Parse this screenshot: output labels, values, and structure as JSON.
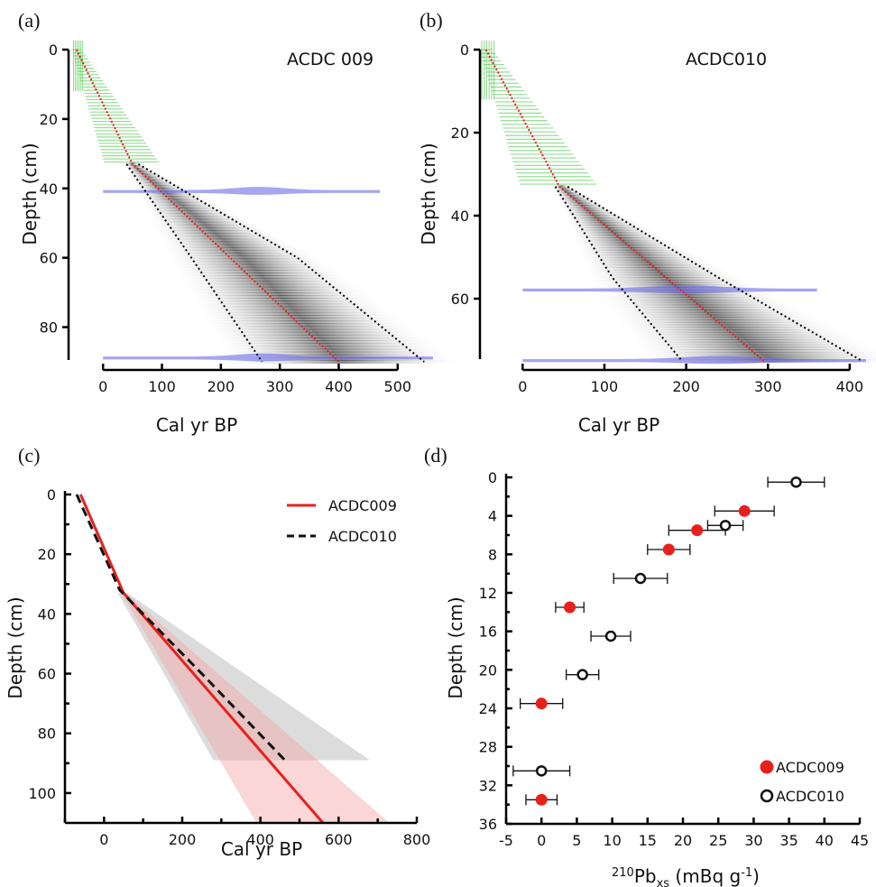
{
  "colors": {
    "ACDC009": "#e8201c",
    "ACDC010": "#111111",
    "green": "#3ec43e",
    "blue": "#6a6ae8",
    "grey": "#9a9a9a",
    "pink": "#f5a3a3"
  },
  "chart_data": [
    {
      "panel": "(a)",
      "type": "area",
      "core_label": "ACDC 009",
      "xlabel": "Cal yr BP",
      "ylabel": "Depth (cm)",
      "xlim": [
        -60,
        560
      ],
      "ylim": [
        0,
        90
      ],
      "xticks": [
        0,
        100,
        200,
        300,
        400,
        500
      ],
      "yticks": [
        0,
        20,
        40,
        60,
        80
      ],
      "green_depth_max": 33,
      "blue_dates": [
        {
          "depth": 41,
          "x0": 0,
          "x1": 470,
          "peak": 265
        },
        {
          "depth": 89,
          "x0": 0,
          "x1": 560,
          "peak": 270
        }
      ],
      "median": {
        "depth": [
          0,
          33,
          90
        ],
        "age": [
          -45,
          50,
          400
        ]
      },
      "lower_95": {
        "depth": [
          0,
          33,
          60,
          90
        ],
        "age": [
          -45,
          40,
          150,
          270
        ]
      },
      "upper_95": {
        "depth": [
          0,
          33,
          60,
          90
        ],
        "age": [
          -45,
          60,
          330,
          545
        ]
      }
    },
    {
      "panel": "(b)",
      "type": "area",
      "core_label": "ACDC010",
      "xlabel": "Cal yr BP",
      "ylabel": "Depth (cm)",
      "xlim": [
        -50,
        420
      ],
      "ylim": [
        0,
        75
      ],
      "xticks": [
        0,
        100,
        200,
        300,
        400
      ],
      "yticks": [
        0,
        20,
        40,
        60
      ],
      "green_depth_max": 33,
      "blue_dates": [
        {
          "depth": 58,
          "x0": 0,
          "x1": 360,
          "peak": 200
        },
        {
          "depth": 75,
          "x0": 0,
          "x1": 420,
          "peak": 240
        }
      ],
      "median": {
        "depth": [
          0,
          33,
          75
        ],
        "age": [
          -45,
          45,
          295
        ]
      },
      "lower_95": {
        "depth": [
          0,
          33,
          55,
          75
        ],
        "age": [
          -45,
          40,
          110,
          195
        ]
      },
      "upper_95": {
        "depth": [
          0,
          33,
          55,
          75
        ],
        "age": [
          -45,
          55,
          240,
          415
        ]
      }
    },
    {
      "panel": "(c)",
      "type": "line",
      "xlabel": "Cal yr BP",
      "ylabel": "Depth (cm)",
      "xlim": [
        -100,
        800
      ],
      "ylim": [
        0,
        110
      ],
      "xticks": [
        0,
        200,
        400,
        600,
        800
      ],
      "yticks": [
        0,
        20,
        40,
        60,
        80,
        100
      ],
      "legend": "top-right",
      "series": [
        {
          "name": "ACDC009",
          "style": "solid",
          "depth": [
            0,
            33,
            110
          ],
          "age": [
            -60,
            50,
            560
          ],
          "band": {
            "depth": [
              33,
              110
            ],
            "min": [
              45,
              390
            ],
            "max": [
              55,
              730
            ]
          }
        },
        {
          "name": "ACDC010",
          "style": "dashed",
          "depth": [
            0,
            32,
            60,
            90
          ],
          "age": [
            -70,
            40,
            250,
            470
          ],
          "band": {
            "depth": [
              33,
              89
            ],
            "min": [
              35,
              280
            ],
            "max": [
              60,
              680
            ]
          }
        }
      ]
    },
    {
      "panel": "(d)",
      "type": "scatter",
      "xlabel_sup": "210",
      "xlabel_main": "Pb",
      "xlabel_sub": "xs",
      "xlabel_tail": " (mBq g",
      "xlabel_exp": "-1",
      "xlabel_close": ")",
      "ylabel": "Depth (cm)",
      "xlim": [
        -5,
        45
      ],
      "ylim": [
        0,
        36
      ],
      "xticks": [
        -5,
        0,
        5,
        10,
        15,
        20,
        25,
        30,
        35,
        40,
        45
      ],
      "yticks": [
        0,
        4,
        8,
        12,
        16,
        20,
        24,
        28,
        32,
        36
      ],
      "legend": "bottom-right",
      "series": [
        {
          "name": "ACDC009",
          "marker": "filled",
          "points": [
            {
              "x": 28.7,
              "y": 3.5,
              "err": 4.2
            },
            {
              "x": 22.0,
              "y": 5.5,
              "err": 4.0
            },
            {
              "x": 18.0,
              "y": 7.5,
              "err": 3.0
            },
            {
              "x": 4.0,
              "y": 13.5,
              "err": 2.0
            },
            {
              "x": 0.0,
              "y": 23.5,
              "err": 3.0
            },
            {
              "x": 0.0,
              "y": 33.5,
              "err": 2.2
            }
          ]
        },
        {
          "name": "ACDC010",
          "marker": "open",
          "points": [
            {
              "x": 36.0,
              "y": 0.5,
              "err": 4.0
            },
            {
              "x": 26.0,
              "y": 5.0,
              "err": 2.5
            },
            {
              "x": 14.0,
              "y": 10.5,
              "err": 3.8
            },
            {
              "x": 9.8,
              "y": 16.5,
              "err": 2.8
            },
            {
              "x": 5.8,
              "y": 20.5,
              "err": 2.3
            },
            {
              "x": 0.0,
              "y": 30.5,
              "err": 4.0
            }
          ]
        }
      ]
    }
  ]
}
